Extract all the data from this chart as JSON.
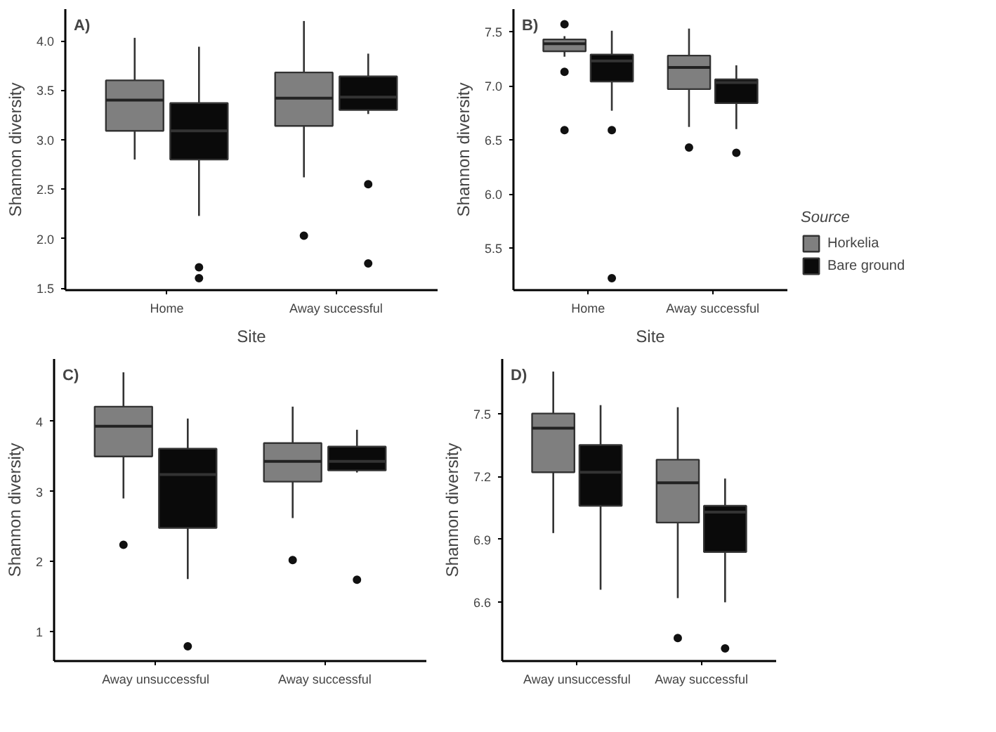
{
  "chart_data": [
    {
      "type": "box",
      "title": "A)",
      "xlabel": "Site",
      "ylabel": "Shannon diversity",
      "categories": [
        "Home",
        "Away successful"
      ],
      "ylim": [
        1.48,
        4.32
      ],
      "yticks": [
        {
          "value": 1.5,
          "label": "1.5"
        },
        {
          "value": 2.0,
          "label": "2.0"
        },
        {
          "value": 2.5,
          "label": "2.5"
        },
        {
          "value": 3.0,
          "label": "3.0"
        },
        {
          "value": 3.5,
          "label": "3.5"
        },
        {
          "value": 4.0,
          "label": "4.0"
        }
      ],
      "grid": false,
      "series": [
        {
          "color": "#7f7f7f",
          "boxes": [
            {
              "low": 2.8,
              "q1": 3.09,
              "median": 3.4,
              "q3": 3.6,
              "high": 4.03
            },
            {
              "low": 2.62,
              "q1": 3.14,
              "median": 3.42,
              "q3": 3.68,
              "high": 4.2,
              "outliers": [
                2.03
              ]
            }
          ]
        },
        {
          "color": "#0a0a0a",
          "boxes": [
            {
              "low": 2.23,
              "q1": 2.8,
              "median": 3.09,
              "q3": 3.37,
              "high": 3.94,
              "outliers": [
                1.71,
                1.6
              ]
            },
            {
              "low": 3.26,
              "q1": 3.3,
              "median": 3.43,
              "q3": 3.64,
              "high": 3.87,
              "outliers": [
                2.55,
                1.75
              ]
            }
          ]
        }
      ]
    },
    {
      "type": "box",
      "title": "B)",
      "xlabel": "Site",
      "ylabel": "Shannon diversity",
      "legend_title": "Source",
      "legend": "right",
      "categories": [
        "Home",
        "Away successful"
      ],
      "ylim": [
        5.11,
        7.71
      ],
      "yticks": [
        {
          "value": 5.5,
          "label": "5.5"
        },
        {
          "value": 6.0,
          "label": "6.0"
        },
        {
          "value": 6.5,
          "label": "6.5"
        },
        {
          "value": 7.0,
          "label": "7.0"
        },
        {
          "value": 7.5,
          "label": "7.5"
        }
      ],
      "grid": false,
      "series": [
        {
          "name": "Horkelia",
          "color": "#7f7f7f",
          "boxes": [
            {
              "low": 7.27,
              "q1": 7.32,
              "median": 7.39,
              "q3": 7.43,
              "high": 7.46,
              "outliers": [
                7.57,
                7.13,
                6.59
              ]
            },
            {
              "low": 6.62,
              "q1": 6.97,
              "median": 7.17,
              "q3": 7.28,
              "high": 7.53,
              "outliers": [
                6.43
              ]
            }
          ]
        },
        {
          "name": "Bare ground",
          "color": "#0a0a0a",
          "boxes": [
            {
              "low": 6.77,
              "q1": 7.04,
              "median": 7.23,
              "q3": 7.29,
              "high": 7.51,
              "outliers": [
                6.59,
                5.22
              ]
            },
            {
              "low": 6.6,
              "q1": 6.84,
              "median": 7.03,
              "q3": 7.06,
              "high": 7.19,
              "outliers": [
                6.38
              ]
            }
          ]
        }
      ]
    },
    {
      "type": "box",
      "title": "C)",
      "ylabel": "Shannon diversity",
      "categories": [
        "Away unsuccessful",
        "Away successful"
      ],
      "ylim": [
        0.58,
        4.89
      ],
      "yticks": [
        1,
        2,
        3,
        4
      ],
      "grid": false,
      "series": [
        {
          "color": "#7f7f7f",
          "boxes": [
            {
              "low": 2.9,
              "q1": 3.5,
              "median": 3.93,
              "q3": 4.21,
              "high": 4.7,
              "outliers": [
                2.24
              ]
            },
            {
              "low": 2.62,
              "q1": 3.14,
              "median": 3.43,
              "q3": 3.69,
              "high": 4.21,
              "outliers": [
                2.02
              ]
            }
          ]
        },
        {
          "color": "#0a0a0a",
          "boxes": [
            {
              "low": 1.75,
              "q1": 2.48,
              "median": 3.24,
              "q3": 3.61,
              "high": 4.04,
              "outliers": [
                0.79
              ]
            },
            {
              "low": 3.27,
              "q1": 3.3,
              "median": 3.43,
              "q3": 3.64,
              "high": 3.88,
              "outliers": [
                1.74
              ]
            }
          ]
        }
      ]
    },
    {
      "type": "box",
      "title": "D)",
      "ylabel": "Shannon diversity",
      "categories": [
        "Away unsuccessful",
        "Away successful"
      ],
      "ylim": [
        6.32,
        7.76
      ],
      "yticks": [
        6.6,
        6.9,
        7.2,
        7.5
      ],
      "grid": false,
      "series": [
        {
          "color": "#7f7f7f",
          "boxes": [
            {
              "low": 6.93,
              "q1": 7.22,
              "median": 7.43,
              "q3": 7.5,
              "high": 7.7
            },
            {
              "low": 6.62,
              "q1": 6.98,
              "median": 7.17,
              "q3": 7.28,
              "high": 7.53,
              "outliers": [
                6.43
              ]
            }
          ]
        },
        {
          "color": "#0a0a0a",
          "boxes": [
            {
              "low": 6.66,
              "q1": 7.06,
              "median": 7.22,
              "q3": 7.35,
              "high": 7.54
            },
            {
              "low": 6.6,
              "q1": 6.84,
              "median": 7.03,
              "q3": 7.06,
              "high": 7.19,
              "outliers": [
                6.38
              ]
            }
          ]
        }
      ]
    }
  ]
}
